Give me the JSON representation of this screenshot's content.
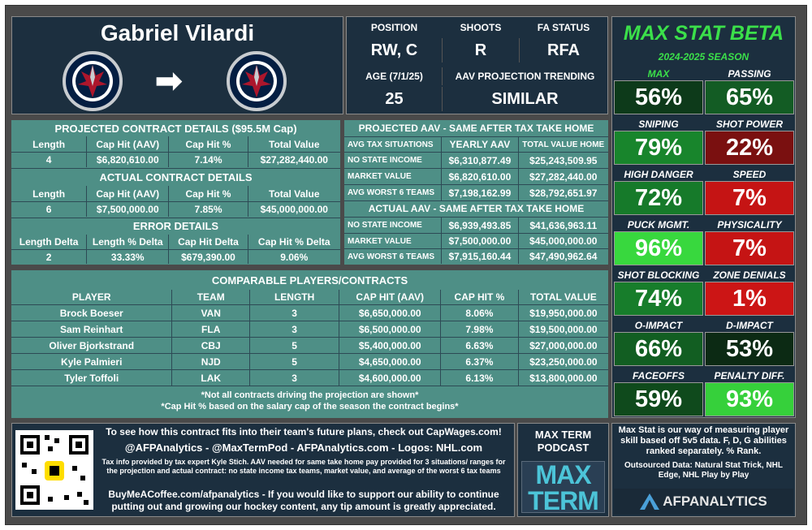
{
  "player": {
    "name": "Gabriel Vilardi",
    "arrow": "➡"
  },
  "bio": {
    "position_label": "POSITION",
    "position": "RW, C",
    "shoots_label": "SHOOTS",
    "shoots": "R",
    "fa_label": "FA STATUS",
    "fa": "RFA",
    "age_label": "AGE (7/1/25)",
    "age": "25",
    "trend_label": "AAV PROJECTION TRENDING",
    "trend": "SIMILAR"
  },
  "projected": {
    "title": "PROJECTED CONTRACT DETAILS ($95.5M Cap)",
    "headers": [
      "Length",
      "Cap Hit (AAV)",
      "Cap Hit %",
      "Total Value"
    ],
    "values": [
      "4",
      "$6,820,610.00",
      "7.14%",
      "$27,282,440.00"
    ]
  },
  "actual": {
    "title": "ACTUAL CONTRACT DETAILS",
    "headers": [
      "Length",
      "Cap Hit (AAV)",
      "Cap Hit %",
      "Total Value"
    ],
    "values": [
      "6",
      "$7,500,000.00",
      "7.85%",
      "$45,000,000.00"
    ]
  },
  "error": {
    "title": "ERROR DETAILS",
    "headers": [
      "Length Delta",
      "Length % Delta",
      "Cap Hit Delta",
      "Cap Hit % Delta"
    ],
    "values": [
      "2",
      "33.33%",
      "$679,390.00",
      "9.06%"
    ]
  },
  "proj_aav": {
    "title": "PROJECTED AAV - SAME AFTER TAX TAKE HOME",
    "headers": [
      "AVG TAX SITUATIONS",
      "YEARLY AAV",
      "TOTAL VALUE HOME"
    ],
    "rows": [
      [
        "NO STATE INCOME",
        "$6,310,877.49",
        "$25,243,509.95"
      ],
      [
        "MARKET VALUE",
        "$6,820,610.00",
        "$27,282,440.00"
      ],
      [
        "AVG WORST 6 TEAMS",
        "$7,198,162.99",
        "$28,792,651.97"
      ]
    ]
  },
  "act_aav": {
    "title": "ACTUAL AAV - SAME AFTER TAX TAKE HOME",
    "rows": [
      [
        "NO STATE INCOME",
        "$6,939,493.85",
        "$41,636,963.11"
      ],
      [
        "MARKET VALUE",
        "$7,500,000.00",
        "$45,000,000.00"
      ],
      [
        "AVG WORST 6 TEAMS",
        "$7,915,160.44",
        "$47,490,962.64"
      ]
    ]
  },
  "comparables": {
    "title": "COMPARABLE PLAYERS/CONTRACTS",
    "headers": [
      "PLAYER",
      "TEAM",
      "LENGTH",
      "CAP HIT (AAV)",
      "CAP HIT %",
      "TOTAL VALUE"
    ],
    "rows": [
      [
        "Brock Boeser",
        "VAN",
        "3",
        "$6,650,000.00",
        "8.06%",
        "$19,950,000.00"
      ],
      [
        "Sam Reinhart",
        "FLA",
        "3",
        "$6,500,000.00",
        "7.98%",
        "$19,500,000.00"
      ],
      [
        "Oliver Bjorkstrand",
        "CBJ",
        "5",
        "$5,400,000.00",
        "6.63%",
        "$27,000,000.00"
      ],
      [
        "Kyle Palmieri",
        "NJD",
        "5",
        "$4,650,000.00",
        "6.37%",
        "$23,250,000.00"
      ],
      [
        "Tyler Toffoli",
        "LAK",
        "3",
        "$4,600,000.00",
        "6.13%",
        "$13,800,000.00"
      ]
    ],
    "note1": "*Not all contracts driving the projection are shown*",
    "note2": "*Cap Hit % based on the salary cap of the season the contract begins*"
  },
  "maxstat": {
    "title": "MAX STAT BETA",
    "season": "2024-2025 SEASON",
    "stats": [
      {
        "label": "MAX",
        "value": "56%",
        "color": "#0d3a1a",
        "lc": "#3be04a"
      },
      {
        "label": "PASSING",
        "value": "65%",
        "color": "#135c24",
        "lc": "#fff"
      },
      {
        "label": "SNIPING",
        "value": "79%",
        "color": "#18852c",
        "lc": "#fff"
      },
      {
        "label": "SHOT POWER",
        "value": "22%",
        "color": "#7a1010",
        "lc": "#fff"
      },
      {
        "label": "HIGH DANGER",
        "value": "72%",
        "color": "#167a2a",
        "lc": "#fff"
      },
      {
        "label": "SPEED",
        "value": "7%",
        "color": "#c51414",
        "lc": "#fff"
      },
      {
        "label": "PUCK MGMT.",
        "value": "96%",
        "color": "#38d83e",
        "lc": "#fff"
      },
      {
        "label": "PHYSICALITY",
        "value": "7%",
        "color": "#c51414",
        "lc": "#fff"
      },
      {
        "label": "SHOT BLOCKING",
        "value": "74%",
        "color": "#177d2b",
        "lc": "#fff"
      },
      {
        "label": "ZONE DENIALS",
        "value": "1%",
        "color": "#cc1515",
        "lc": "#fff"
      },
      {
        "label": "O-IMPACT",
        "value": "66%",
        "color": "#125e22",
        "lc": "#fff"
      },
      {
        "label": "D-IMPACT",
        "value": "53%",
        "color": "#0c2a14",
        "lc": "#fff"
      },
      {
        "label": "FACEOFFS",
        "value": "59%",
        "color": "#0f4a1c",
        "lc": "#fff"
      },
      {
        "label": "PENALTY DIFF.",
        "value": "93%",
        "color": "#36d03b",
        "lc": "#fff"
      }
    ]
  },
  "footer": {
    "line1": "To see how this contract fits into their team's future plans, check out CapWages.com!",
    "line2": "@AFPAnalytics - @MaxTermPod - AFPAnalytics.com - Logos: NHL.com",
    "line3": "Tax info provided by tax expert Kyle Stich. AAV needed for same take home pay provided for 3 situations/ ranges for the projection and actual contract: no state income tax teams, market value, and average of the worst 6 tax teams",
    "line4": "BuyMeACoffee.com/afpanalytics - If you would like to support our ability to continue putting out and growing our hockey content, any tip amount is greatly appreciated."
  },
  "podcast": {
    "title": "MAX TERM PODCAST",
    "logo_top": "MAX",
    "logo_bottom": "TERM"
  },
  "info": {
    "text": "Max Stat is our way of measuring player skill based off 5v5 data. F, D, G abilities ranked separately. % Rank.",
    "outsourced": "Outsourced Data: Natural Stat Trick, NHL Edge, NHL Play by Play",
    "brand": "AFPANALYTICS"
  }
}
